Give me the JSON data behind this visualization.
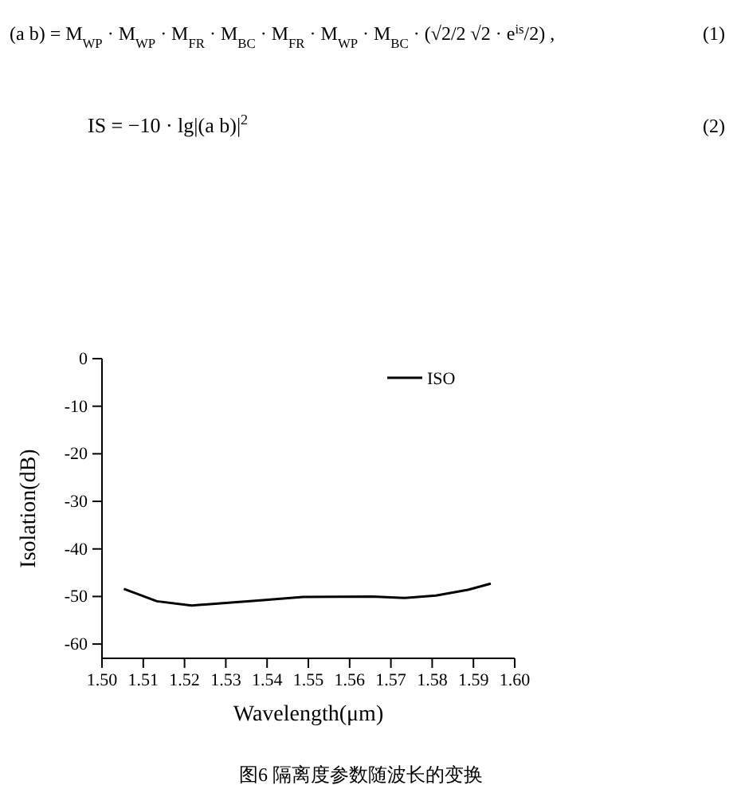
{
  "chart_data": {
    "type": "line",
    "xlabel": "Wavelength(μm)",
    "ylabel": "Isolation(dB)",
    "x": [
      1.5053,
      1.5133,
      1.5217,
      1.5294,
      1.5384,
      1.5487,
      1.5655,
      1.5732,
      1.5809,
      1.5887,
      1.5942
    ],
    "series": [
      {
        "name": "ISO",
        "color": "#000000",
        "values": [
          -48.4,
          -51.0,
          -51.9,
          -51.4,
          -50.8,
          -50.1,
          -50.0,
          -50.3,
          -49.8,
          -48.6,
          -47.3
        ]
      }
    ],
    "xlim": [
      1.5,
      1.6
    ],
    "xticks": [
      {
        "value": 1.5,
        "label": "1.50"
      },
      1.51,
      1.52,
      1.53,
      1.54,
      1.55,
      1.56,
      1.57,
      1.58,
      1.59,
      {
        "value": 1.6,
        "label": "1.60"
      }
    ],
    "ylim": [
      -63,
      0
    ],
    "yticks": [
      0,
      -10,
      -20,
      -30,
      -40,
      -50,
      -60
    ],
    "grid": false,
    "legend": "top right",
    "marker": "none",
    "line_style": "solid",
    "annotations": [
      "(a b) = M$_{WP}$ · M$_{WP}$ · M$_{FR}$ · M$_{BC}$ · M$_{FR}$ · M$_{WP}$ · M$_{BC}$ · (√2/2 √2 · e$^{is}$/2) ,",
      "(1)",
      "IS = −10 · lg|(a b)|$^{2}$",
      "(2)",
      "图6 隔离度参数随波长的变换"
    ]
  }
}
